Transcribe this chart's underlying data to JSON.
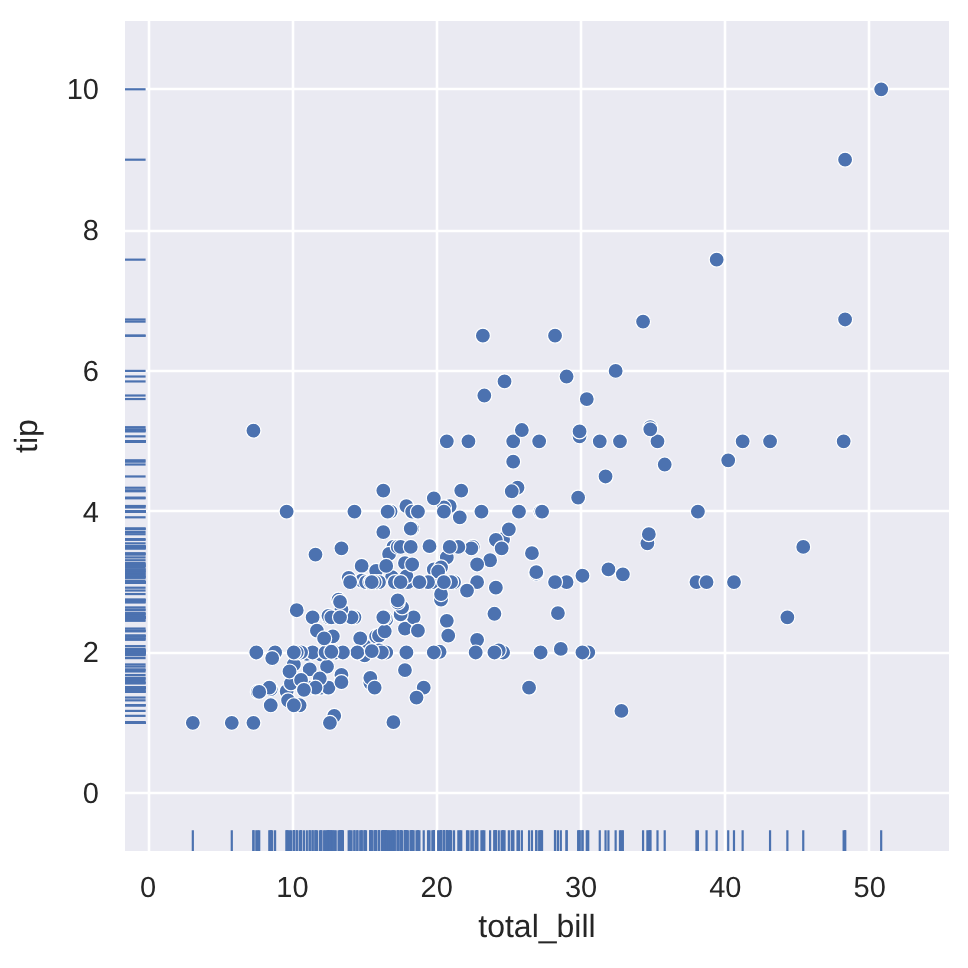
{
  "chart_data": {
    "type": "scatter",
    "xlabel": "total_bill",
    "ylabel": "tip",
    "color": "#4c72b0",
    "marker": "circle",
    "grid": true,
    "xlim": [
      -1.6,
      55.5
    ],
    "ylim": [
      -0.82,
      10.97
    ],
    "xticks": [
      0,
      10,
      20,
      30,
      40,
      50
    ],
    "yticks": [
      0,
      2,
      4,
      6,
      8,
      10
    ],
    "x": [
      17.0,
      23.7,
      24.6,
      25.3,
      8.8,
      26.9,
      15.0,
      14.8,
      35.3,
      15.4,
      14.8,
      21.6,
      16.3,
      17.0,
      20.7,
      17.9,
      20.3,
      15.8,
      39.4,
      19.8,
      17.8,
      21.7,
      19.7,
      9.6,
      18.4,
      15.1,
      20.7,
      17.8,
      24.1,
      16.9,
      18.7,
      31.3,
      16.0,
      17.5,
      13.9,
      9.7,
      30.4,
      22.2,
      32.4,
      28.6,
      18.0,
      12.5,
      10.3,
      34.8,
      9.9,
      25.6,
      19.5,
      38.0,
      26.4,
      11.2,
      48.3,
      20.3,
      11.0,
      18.3,
      17.6,
      20.1,
      16.5,
      3.1,
      20.2,
      15.0,
      12.0,
      17.1,
      26.9,
      25.3,
      14.7,
      10.5,
      17.9,
      27.2,
      22.8,
      17.3,
      19.4,
      16.7,
      10.1,
      32.7,
      16.0,
      34.8,
      13.0,
      18.3,
      24.7,
      21.2,
      29.0,
      22.5,
      5.8,
      16.3,
      22.8,
      40.2,
      27.3,
      12.0,
      21.0,
      12.5,
      11.4,
      15.4,
      44.3,
      22.4,
      20.9,
      15.4,
      20.5,
      25.2,
      18.2,
      14.3,
      14.0,
      7.3,
      38.1,
      24.0,
      25.7,
      17.3,
      29.9,
      12.4,
      24.1,
      11.7,
      13.4,
      14.3,
      12.5,
      29.8,
      8.5,
      14.5,
      11.4,
      22.8,
      19.1,
      20.3,
      11.2,
      12.3,
      18.3,
      8.5,
      13.2,
      17.5,
      34.3,
      41.2,
      27.1,
      16.4,
      8.4,
      18.6,
      11.9,
      9.8,
      7.5,
      14.1,
      17.3,
      24.6,
      19.8,
      29.9,
      48.2,
      25.0,
      13.4,
      16.5,
      21.5,
      12.7,
      16.2,
      17.5,
      24.5,
      20.8,
      31.7,
      10.6,
      10.6,
      50.8,
      15.8,
      7.3,
      31.9,
      16.8,
      32.9,
      17.9,
      14.5,
      9.6,
      34.6,
      34.7,
      23.3,
      45.4,
      23.2,
      40.6,
      20.7,
      20.9,
      30.5,
      18.2,
      23.1,
      15.7,
      19.8,
      28.4,
      15.5,
      16.6,
      7.6,
      10.3,
      43.1,
      13.5,
      18.7,
      12.7,
      16.4,
      20.5,
      16.5,
      26.6,
      38.7,
      24.3,
      12.8,
      30.1,
      25.9,
      48.3,
      13.3,
      28.2,
      12.9,
      28.2,
      11.6,
      7.7,
      30.1,
      12.2,
      13.4,
      8.6,
      16.0,
      13.4,
      16.3,
      10.1,
      20.5,
      13.3,
      22.1,
      24.0,
      15.7,
      11.6,
      10.8,
      15.5,
      10.1,
      12.6,
      32.8,
      35.8,
      29.0,
      27.2,
      22.7,
      17.8,
      18.8
    ],
    "values": [
      1.01,
      3.31,
      3.61,
      4.71,
      2.0,
      3.12,
      1.96,
      3.23,
      5.0,
      1.57,
      3.02,
      3.92,
      3.71,
      3.5,
      3.35,
      4.08,
      2.75,
      2.23,
      7.58,
      3.18,
      2.34,
      4.3,
      3.0,
      1.45,
      2.5,
      3.0,
      2.45,
      3.27,
      3.6,
      3.07,
      2.31,
      5.0,
      2.24,
      2.54,
      3.06,
      1.32,
      5.6,
      5.0,
      6.0,
      2.05,
      3.0,
      2.5,
      2.6,
      5.2,
      1.56,
      4.34,
      3.51,
      3.0,
      1.5,
      1.76,
      6.73,
      3.21,
      1.98,
      3.76,
      2.64,
      3.15,
      2.47,
      1.0,
      2.01,
      2.09,
      1.97,
      3.0,
      3.14,
      5.0,
      2.2,
      1.25,
      3.08,
      4.0,
      3.0,
      2.71,
      3.0,
      3.4,
      1.83,
      5.0,
      2.03,
      5.17,
      2.0,
      4.0,
      5.85,
      3.0,
      3.0,
      3.5,
      1.0,
      4.3,
      3.25,
      4.73,
      4.0,
      1.5,
      3.0,
      1.5,
      2.5,
      3.0,
      2.5,
      3.48,
      4.08,
      1.64,
      4.06,
      4.29,
      3.76,
      4.0,
      3.0,
      1.0,
      4.0,
      2.55,
      4.0,
      3.5,
      5.07,
      1.8,
      2.92,
      2.31,
      1.68,
      2.5,
      2.52,
      4.2,
      1.48,
      2.0,
      2.0,
      2.18,
      1.5,
      2.83,
      1.5,
      2.0,
      3.25,
      1.25,
      2.75,
      3.5,
      6.7,
      5.0,
      5.0,
      2.3,
      1.5,
      1.36,
      1.63,
      1.73,
      2.0,
      2.5,
      2.74,
      2.0,
      2.0,
      5.14,
      5.0,
      3.75,
      2.61,
      2.0,
      3.5,
      2.5,
      2.0,
      3.0,
      3.48,
      2.24,
      4.5,
      1.61,
      2.0,
      10.0,
      3.16,
      5.15,
      3.18,
      4.0,
      3.11,
      2.0,
      2.0,
      4.0,
      3.55,
      3.68,
      5.65,
      3.5,
      6.5,
      3.0,
      5.0,
      3.5,
      2.0,
      3.5,
      4.0,
      1.5,
      4.19,
      2.56,
      2.02,
      4.0,
      1.44,
      2.0,
      5.0,
      2.0,
      4.0,
      2.01,
      2.5,
      4.0,
      3.23,
      3.41,
      3.0,
      2.03,
      2.23,
      2.0,
      5.16,
      9.0,
      2.5,
      6.5,
      1.1,
      3.0,
      1.5,
      1.44,
      3.09,
      2.2,
      3.48,
      1.92,
      3.0,
      1.58,
      2.5,
      2.0,
      3.0,
      2.72,
      2.88,
      2.0,
      3.0,
      3.39,
      1.47,
      3.0,
      1.25,
      1.0,
      1.17,
      4.67,
      5.92,
      2.0,
      2.0,
      1.75,
      3.0
    ]
  }
}
